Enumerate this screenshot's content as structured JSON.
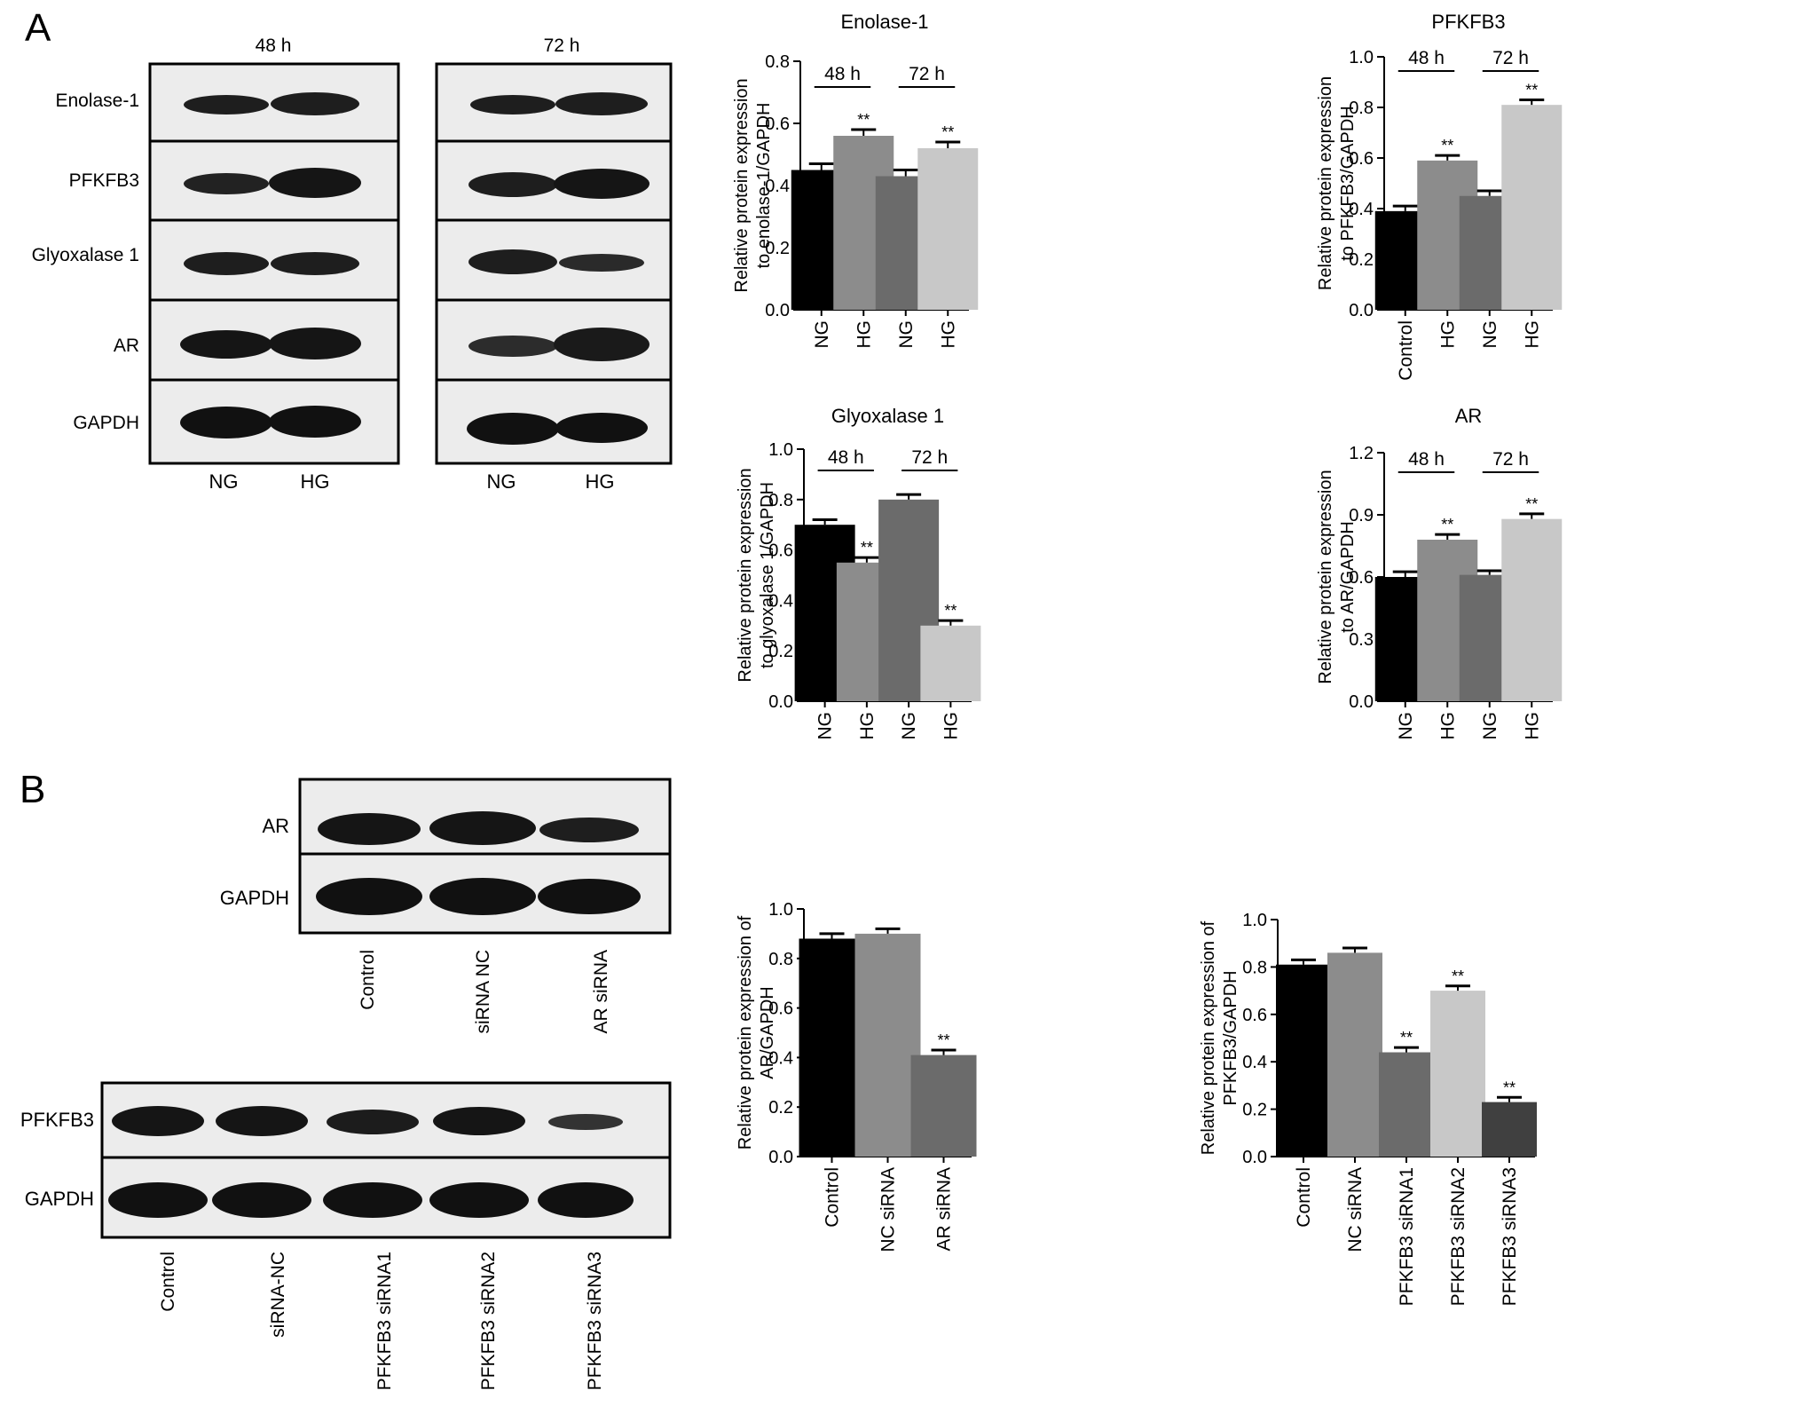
{
  "panels": {
    "a_label": "A",
    "b_label": "B"
  },
  "blot_a": {
    "times": [
      "48 h",
      "72 h"
    ],
    "proteins": [
      "Enolase-1",
      "PFKFB3",
      "Glyoxalase 1",
      "AR",
      "GAPDH"
    ],
    "lanes": [
      "NG",
      "HG"
    ]
  },
  "blot_b1": {
    "proteins": [
      "AR",
      "GAPDH"
    ],
    "lanes": [
      "Control",
      "siRNA NC",
      "AR siRNA"
    ]
  },
  "blot_b2": {
    "proteins": [
      "PFKFB3",
      "GAPDH"
    ],
    "lanes": [
      "Control",
      "siRNA-NC",
      "PFKFB3 siRNA1",
      "PFKFB3 siRNA2",
      "PFKFB3 siRNA3"
    ]
  },
  "colors": {
    "black": "#000000",
    "grey": "#8c8c8c",
    "dark_grey": "#6b6b6b",
    "light_grey": "#c8c8c8",
    "charcoal": "#404040"
  },
  "chart_data": [
    {
      "type": "bar",
      "title": "Enolase-1",
      "ylabel": "Relative protein expression\nto enolase-1/GAPDH",
      "categories": [
        "NG",
        "HG",
        "NG",
        "HG"
      ],
      "values": [
        0.45,
        0.56,
        0.43,
        0.52
      ],
      "errors": [
        0.02,
        0.02,
        0.02,
        0.02
      ],
      "significance": [
        "",
        "**",
        "",
        "**"
      ],
      "ylim": [
        0,
        0.8
      ],
      "yticks": [
        "0.0",
        "0.2",
        "0.4",
        "0.6",
        "0.8"
      ],
      "groups": [
        "48 h",
        "72 h"
      ],
      "bar_colors": [
        "#000000",
        "#8c8c8c",
        "#6b6b6b",
        "#c8c8c8"
      ]
    },
    {
      "type": "bar",
      "title": "PFKFB3",
      "ylabel": "Relative protein expression\nto PFKFB3/GAPDH",
      "categories": [
        "Control",
        "HG",
        "NG",
        "HG"
      ],
      "values": [
        0.39,
        0.59,
        0.45,
        0.81
      ],
      "errors": [
        0.02,
        0.02,
        0.02,
        0.02
      ],
      "significance": [
        "",
        "**",
        "",
        "**"
      ],
      "ylim": [
        0,
        1.0
      ],
      "yticks": [
        "0.0",
        "0.2",
        "0.4",
        "0.6",
        "0.8",
        "1.0"
      ],
      "groups": [
        "48 h",
        "72 h"
      ],
      "bar_colors": [
        "#000000",
        "#8c8c8c",
        "#6b6b6b",
        "#c8c8c8"
      ]
    },
    {
      "type": "bar",
      "title": "Glyoxalase 1",
      "ylabel": "Relative protein expression\nto glyoxalase 1/GAPDH",
      "categories": [
        "NG",
        "HG",
        "NG",
        "HG"
      ],
      "values": [
        0.7,
        0.55,
        0.8,
        0.3
      ],
      "errors": [
        0.02,
        0.02,
        0.02,
        0.02
      ],
      "significance": [
        "",
        "**",
        "",
        "**"
      ],
      "ylim": [
        0,
        1.0
      ],
      "yticks": [
        "0.0",
        "0.2",
        "0.4",
        "0.6",
        "0.8",
        "1.0"
      ],
      "groups": [
        "48 h",
        "72 h"
      ],
      "bar_colors": [
        "#000000",
        "#8c8c8c",
        "#6b6b6b",
        "#c8c8c8"
      ]
    },
    {
      "type": "bar",
      "title": "AR",
      "ylabel": "Relative protein expression\nto AR/GAPDH",
      "categories": [
        "NG",
        "HG",
        "NG",
        "HG"
      ],
      "values": [
        0.6,
        0.78,
        0.61,
        0.88
      ],
      "errors": [
        0.025,
        0.025,
        0.02,
        0.025
      ],
      "significance": [
        "",
        "**",
        "",
        "**"
      ],
      "ylim": [
        0,
        1.2
      ],
      "yticks": [
        "0.0",
        "0.3",
        "0.6",
        "0.9",
        "1.2"
      ],
      "groups": [
        "48 h",
        "72 h"
      ],
      "bar_colors": [
        "#000000",
        "#8c8c8c",
        "#6b6b6b",
        "#c8c8c8"
      ]
    },
    {
      "type": "bar",
      "title": "",
      "ylabel": "Relative protein expression of\nAR/GAPDH",
      "categories": [
        "Control",
        "NC siRNA",
        "AR siRNA"
      ],
      "values": [
        0.88,
        0.9,
        0.41
      ],
      "errors": [
        0.02,
        0.02,
        0.02
      ],
      "significance": [
        "",
        "",
        "**"
      ],
      "ylim": [
        0,
        1.0
      ],
      "yticks": [
        "0.0",
        "0.2",
        "0.4",
        "0.6",
        "0.8",
        "1.0"
      ],
      "groups": [],
      "bar_colors": [
        "#000000",
        "#8c8c8c",
        "#6b6b6b"
      ]
    },
    {
      "type": "bar",
      "title": "",
      "ylabel": "Relative protein expression of\nPFKFB3/GAPDH",
      "categories": [
        "Control",
        "NC siRNA",
        "PFKFB3 siRNA1",
        "PFKFB3 siRNA2",
        "PFKFB3 siRNA3"
      ],
      "values": [
        0.81,
        0.86,
        0.44,
        0.7,
        0.23
      ],
      "errors": [
        0.02,
        0.02,
        0.02,
        0.02,
        0.02
      ],
      "significance": [
        "",
        "",
        "**",
        "**",
        "**"
      ],
      "ylim": [
        0,
        1.0
      ],
      "yticks": [
        "0.0",
        "0.2",
        "0.4",
        "0.6",
        "0.8",
        "1.0"
      ],
      "groups": [],
      "bar_colors": [
        "#000000",
        "#8c8c8c",
        "#6b6b6b",
        "#c8c8c8",
        "#404040"
      ]
    }
  ]
}
